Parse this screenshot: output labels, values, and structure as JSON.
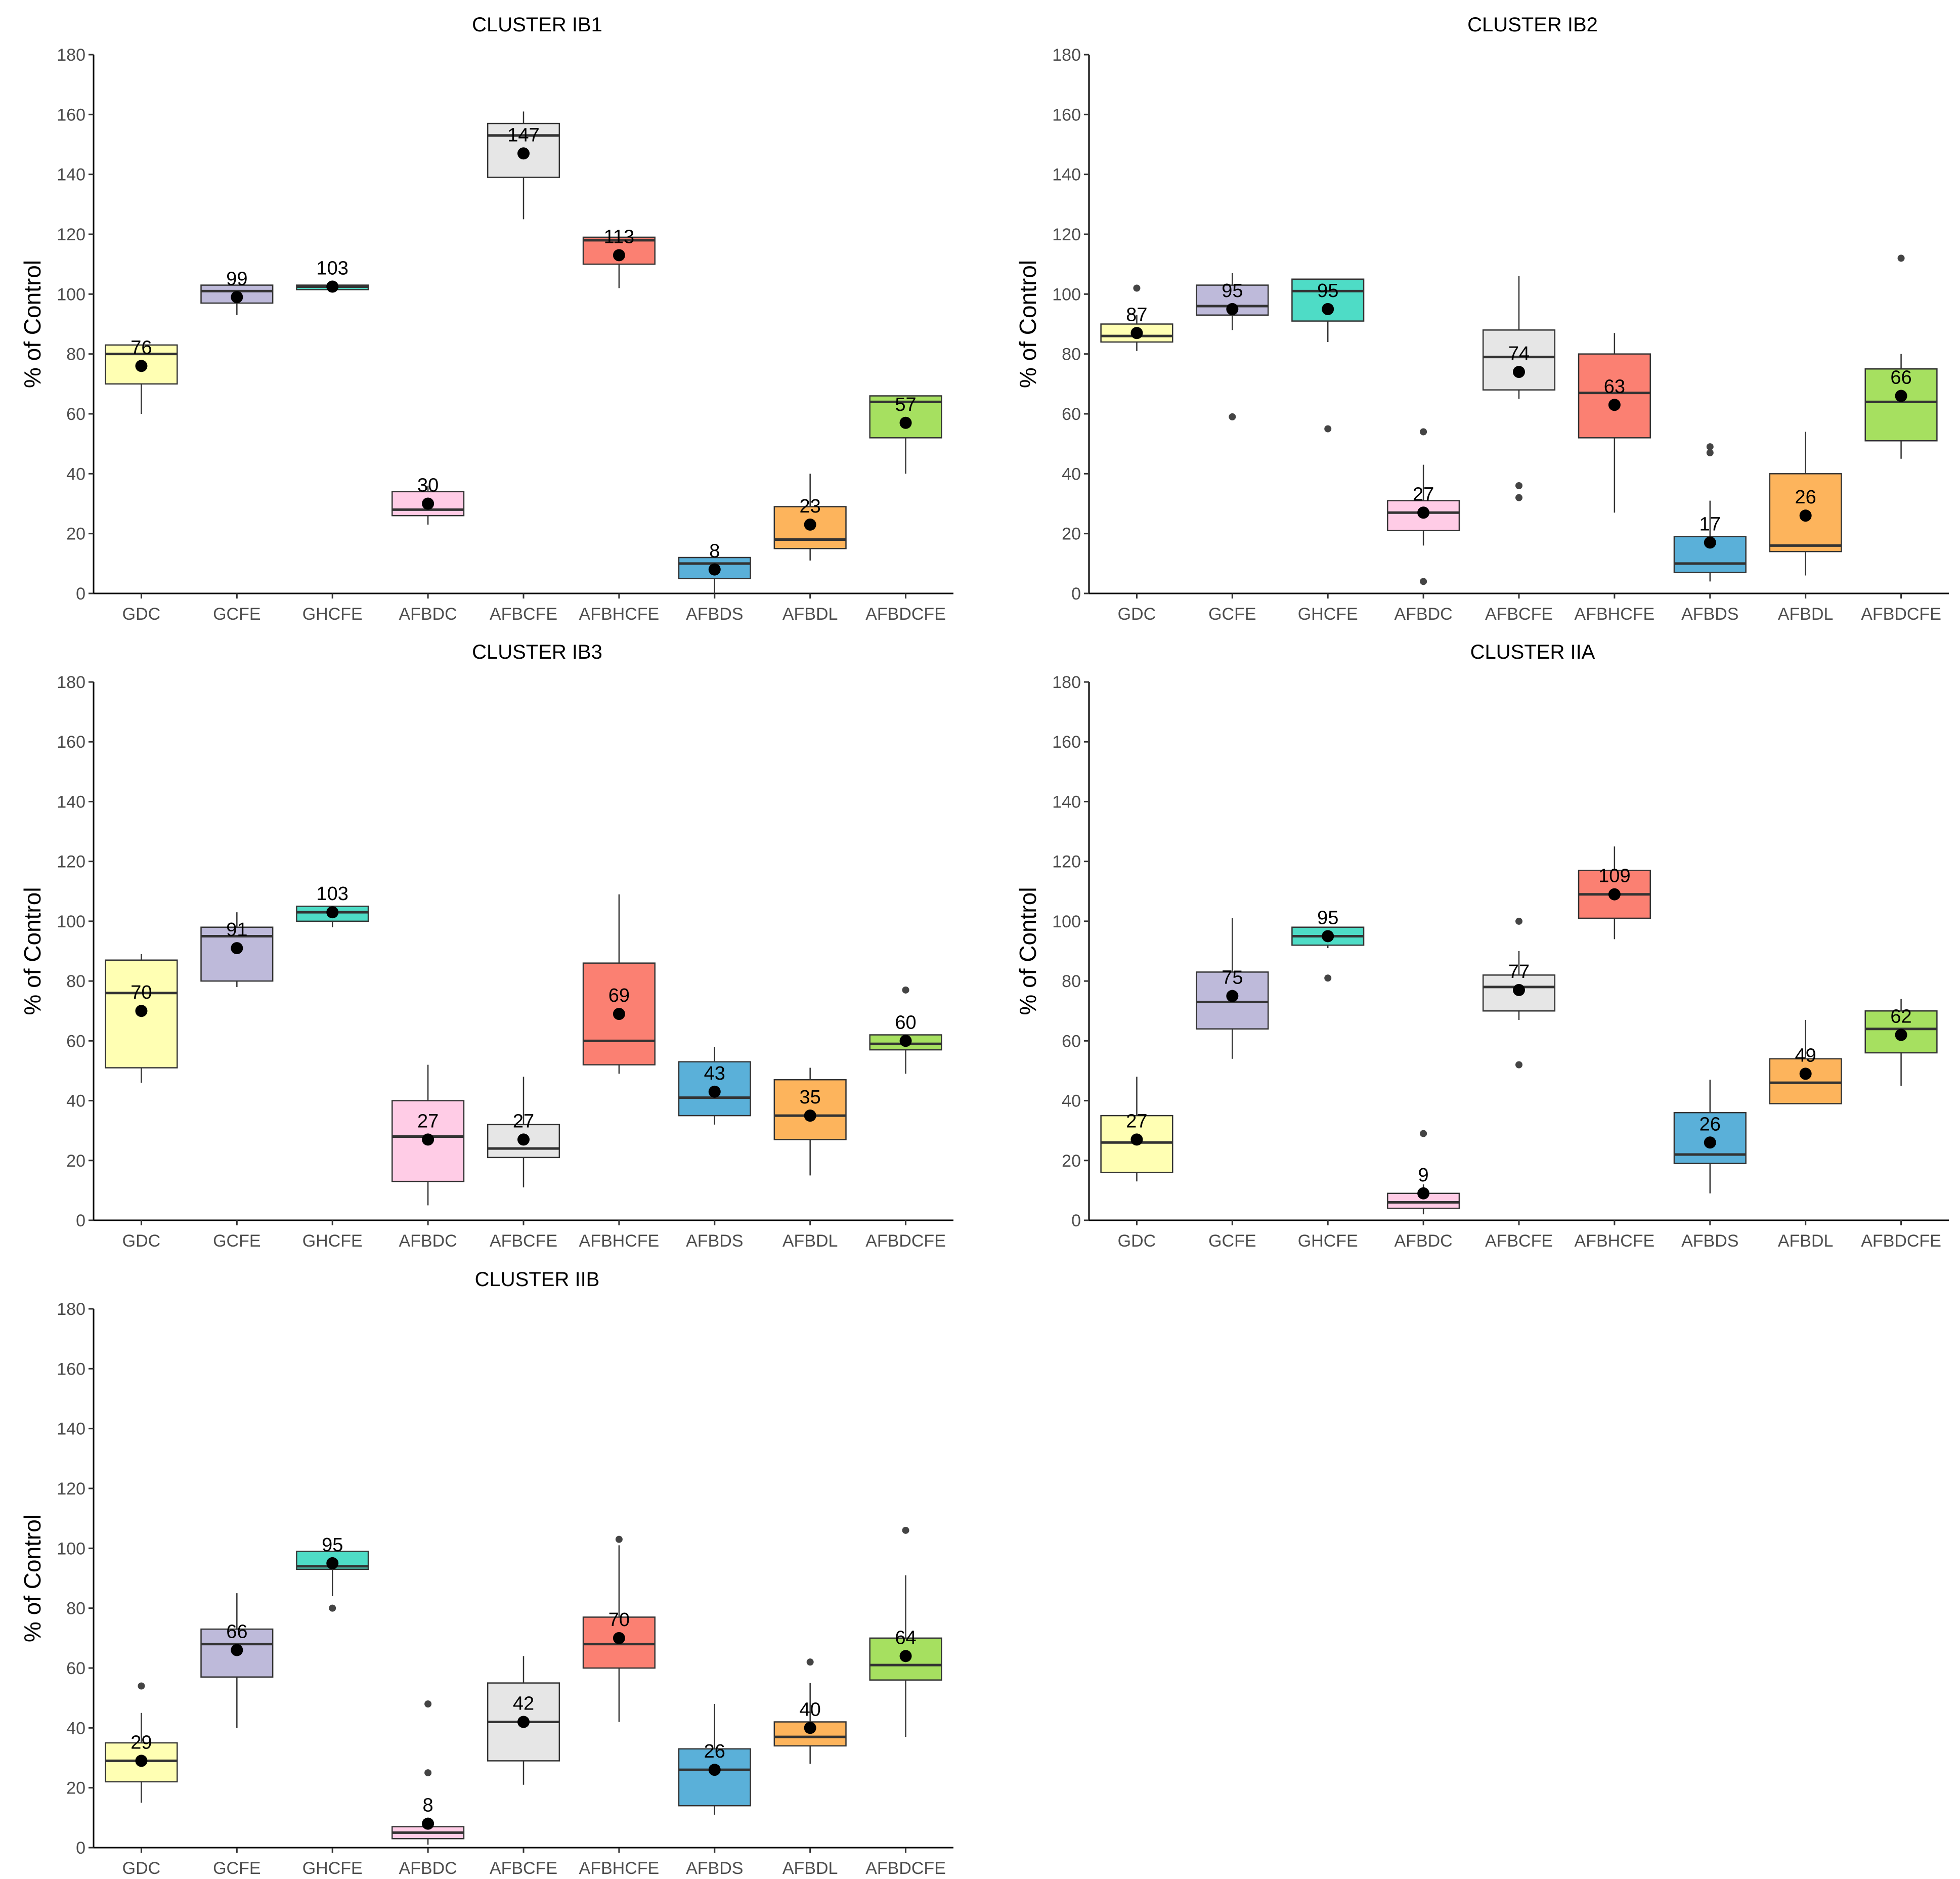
{
  "chart_data": [
    {
      "type": "box",
      "title": "CLUSTER IB1",
      "ylabel": "% of Control",
      "ylim": [
        0,
        180
      ],
      "yticks": [
        0,
        20,
        40,
        60,
        80,
        100,
        120,
        140,
        160,
        180
      ],
      "categories": [
        "GDC",
        "GCFE",
        "GHCFE",
        "AFBDC",
        "AFBCFE",
        "AFBHCFE",
        "AFBDS",
        "AFBDL",
        "AFBDCFE"
      ],
      "boxes": [
        {
          "category": "GDC",
          "color": "#FFFFB3",
          "q1": 70,
          "median": 80,
          "q3": 83,
          "wlo": 60,
          "whi": 83,
          "mean": 76,
          "mean_label": "76",
          "outliers": []
        },
        {
          "category": "GCFE",
          "color": "#BEBADA",
          "q1": 97,
          "median": 101,
          "q3": 103,
          "wlo": 93,
          "whi": 103,
          "mean": 99,
          "mean_label": "99",
          "outliers": []
        },
        {
          "category": "GHCFE",
          "color": "#4EDCC6",
          "q1": 101.5,
          "median": 102.5,
          "q3": 103,
          "wlo": 101.5,
          "whi": 103,
          "mean": 102.5,
          "mean_label": "103",
          "outliers": []
        },
        {
          "category": "AFBDC",
          "color": "#FFCCE6",
          "q1": 26,
          "median": 28,
          "q3": 34,
          "wlo": 23,
          "whi": 36,
          "mean": 30,
          "mean_label": "30",
          "outliers": []
        },
        {
          "category": "AFBCFE",
          "color": "#E6E6E6",
          "q1": 139,
          "median": 153,
          "q3": 157,
          "wlo": 125,
          "whi": 161,
          "mean": 147,
          "mean_label": "147",
          "outliers": []
        },
        {
          "category": "AFBHCFE",
          "color": "#FB8072",
          "q1": 110,
          "median": 118,
          "q3": 119,
          "wlo": 102,
          "whi": 119,
          "mean": 113,
          "mean_label": "113",
          "outliers": []
        },
        {
          "category": "AFBDS",
          "color": "#5AB0D9",
          "q1": 5,
          "median": 10,
          "q3": 12,
          "wlo": 0,
          "whi": 12,
          "mean": 8,
          "mean_label": "8",
          "outliers": []
        },
        {
          "category": "AFBDL",
          "color": "#FDB45C",
          "q1": 15,
          "median": 18,
          "q3": 29,
          "wlo": 11,
          "whi": 40,
          "mean": 23,
          "mean_label": "23",
          "outliers": []
        },
        {
          "category": "AFBDCFE",
          "color": "#A6E060",
          "q1": 52,
          "median": 64,
          "q3": 66,
          "wlo": 40,
          "whi": 66,
          "mean": 57,
          "mean_label": "57",
          "outliers": []
        }
      ]
    },
    {
      "type": "box",
      "title": "CLUSTER IB2",
      "ylabel": "% of Control",
      "ylim": [
        0,
        180
      ],
      "yticks": [
        0,
        20,
        40,
        60,
        80,
        100,
        120,
        140,
        160,
        180
      ],
      "categories": [
        "GDC",
        "GCFE",
        "GHCFE",
        "AFBDC",
        "AFBCFE",
        "AFBHCFE",
        "AFBDS",
        "AFBDL",
        "AFBDCFE"
      ],
      "boxes": [
        {
          "category": "GDC",
          "color": "#FFFFB3",
          "q1": 84,
          "median": 86,
          "q3": 90,
          "wlo": 81,
          "whi": 93,
          "mean": 87,
          "mean_label": "87",
          "outliers": [
            102
          ]
        },
        {
          "category": "GCFE",
          "color": "#BEBADA",
          "q1": 93,
          "median": 96,
          "q3": 103,
          "wlo": 88,
          "whi": 107,
          "mean": 95,
          "mean_label": "95",
          "outliers": [
            59
          ]
        },
        {
          "category": "GHCFE",
          "color": "#4EDCC6",
          "q1": 91,
          "median": 101,
          "q3": 105,
          "wlo": 84,
          "whi": 105,
          "mean": 95,
          "mean_label": "95",
          "outliers": [
            55
          ]
        },
        {
          "category": "AFBDC",
          "color": "#FFCCE6",
          "q1": 21,
          "median": 27,
          "q3": 31,
          "wlo": 16,
          "whi": 43,
          "mean": 27,
          "mean_label": "27",
          "outliers": [
            54,
            4
          ]
        },
        {
          "category": "AFBCFE",
          "color": "#E6E6E6",
          "q1": 68,
          "median": 79,
          "q3": 88,
          "wlo": 65,
          "whi": 106,
          "mean": 74,
          "mean_label": "74",
          "outliers": [
            36,
            32
          ]
        },
        {
          "category": "AFBHCFE",
          "color": "#FB8072",
          "q1": 52,
          "median": 67,
          "q3": 80,
          "wlo": 27,
          "whi": 87,
          "mean": 63,
          "mean_label": "63",
          "outliers": []
        },
        {
          "category": "AFBDS",
          "color": "#5AB0D9",
          "q1": 7,
          "median": 10,
          "q3": 19,
          "wlo": 4,
          "whi": 31,
          "mean": 17,
          "mean_label": "17",
          "outliers": [
            49,
            47
          ]
        },
        {
          "category": "AFBDL",
          "color": "#FDB45C",
          "q1": 14,
          "median": 16,
          "q3": 40,
          "wlo": 6,
          "whi": 54,
          "mean": 26,
          "mean_label": "26",
          "outliers": []
        },
        {
          "category": "AFBDCFE",
          "color": "#A6E060",
          "q1": 51,
          "median": 64,
          "q3": 75,
          "wlo": 45,
          "whi": 80,
          "mean": 66,
          "mean_label": "66",
          "outliers": [
            112
          ]
        }
      ]
    },
    {
      "type": "box",
      "title": "CLUSTER IB3",
      "ylabel": "% of Control",
      "ylim": [
        0,
        180
      ],
      "yticks": [
        0,
        20,
        40,
        60,
        80,
        100,
        120,
        140,
        160,
        180
      ],
      "categories": [
        "GDC",
        "GCFE",
        "GHCFE",
        "AFBDC",
        "AFBCFE",
        "AFBHCFE",
        "AFBDS",
        "AFBDL",
        "AFBDCFE"
      ],
      "boxes": [
        {
          "category": "GDC",
          "color": "#FFFFB3",
          "q1": 51,
          "median": 76,
          "q3": 87,
          "wlo": 46,
          "whi": 89,
          "mean": 70,
          "mean_label": "70",
          "outliers": []
        },
        {
          "category": "GCFE",
          "color": "#BEBADA",
          "q1": 80,
          "median": 95,
          "q3": 98,
          "wlo": 78,
          "whi": 103,
          "mean": 91,
          "mean_label": "91",
          "outliers": []
        },
        {
          "category": "GHCFE",
          "color": "#4EDCC6",
          "q1": 100,
          "median": 103,
          "q3": 105,
          "wlo": 98,
          "whi": 105,
          "mean": 103,
          "mean_label": "103",
          "outliers": []
        },
        {
          "category": "AFBDC",
          "color": "#FFCCE6",
          "q1": 13,
          "median": 28,
          "q3": 40,
          "wlo": 5,
          "whi": 52,
          "mean": 27,
          "mean_label": "27",
          "outliers": []
        },
        {
          "category": "AFBCFE",
          "color": "#E6E6E6",
          "q1": 21,
          "median": 24,
          "q3": 32,
          "wlo": 11,
          "whi": 48,
          "mean": 27,
          "mean_label": "27",
          "outliers": []
        },
        {
          "category": "AFBHCFE",
          "color": "#FB8072",
          "q1": 52,
          "median": 60,
          "q3": 86,
          "wlo": 49,
          "whi": 109,
          "mean": 69,
          "mean_label": "69",
          "outliers": []
        },
        {
          "category": "AFBDS",
          "color": "#5AB0D9",
          "q1": 35,
          "median": 41,
          "q3": 53,
          "wlo": 32,
          "whi": 58,
          "mean": 43,
          "mean_label": "43",
          "outliers": []
        },
        {
          "category": "AFBDL",
          "color": "#FDB45C",
          "q1": 27,
          "median": 35,
          "q3": 47,
          "wlo": 15,
          "whi": 51,
          "mean": 35,
          "mean_label": "35",
          "outliers": []
        },
        {
          "category": "AFBDCFE",
          "color": "#A6E060",
          "q1": 57,
          "median": 59,
          "q3": 62,
          "wlo": 49,
          "whi": 62,
          "mean": 60,
          "mean_label": "60",
          "outliers": [
            77
          ]
        }
      ]
    },
    {
      "type": "box",
      "title": "CLUSTER IIA",
      "ylabel": "% of Control",
      "ylim": [
        0,
        180
      ],
      "yticks": [
        0,
        20,
        40,
        60,
        80,
        100,
        120,
        140,
        160,
        180
      ],
      "categories": [
        "GDC",
        "GCFE",
        "GHCFE",
        "AFBDC",
        "AFBCFE",
        "AFBHCFE",
        "AFBDS",
        "AFBDL",
        "AFBDCFE"
      ],
      "boxes": [
        {
          "category": "GDC",
          "color": "#FFFFB3",
          "q1": 16,
          "median": 26,
          "q3": 35,
          "wlo": 13,
          "whi": 48,
          "mean": 27,
          "mean_label": "27",
          "outliers": []
        },
        {
          "category": "GCFE",
          "color": "#BEBADA",
          "q1": 64,
          "median": 73,
          "q3": 83,
          "wlo": 54,
          "whi": 101,
          "mean": 75,
          "mean_label": "75",
          "outliers": []
        },
        {
          "category": "GHCFE",
          "color": "#4EDCC6",
          "q1": 92,
          "median": 95,
          "q3": 98,
          "wlo": 91,
          "whi": 98,
          "mean": 95,
          "mean_label": "95",
          "outliers": [
            81
          ]
        },
        {
          "category": "AFBDC",
          "color": "#FFCCE6",
          "q1": 4,
          "median": 6,
          "q3": 9,
          "wlo": 2,
          "whi": 12,
          "mean": 9,
          "mean_label": "9",
          "outliers": [
            29
          ]
        },
        {
          "category": "AFBCFE",
          "color": "#E6E6E6",
          "q1": 70,
          "median": 78,
          "q3": 82,
          "wlo": 67,
          "whi": 90,
          "mean": 77,
          "mean_label": "77",
          "outliers": [
            100,
            52
          ]
        },
        {
          "category": "AFBHCFE",
          "color": "#FB8072",
          "q1": 101,
          "median": 109,
          "q3": 117,
          "wlo": 94,
          "whi": 125,
          "mean": 109,
          "mean_label": "109",
          "outliers": []
        },
        {
          "category": "AFBDS",
          "color": "#5AB0D9",
          "q1": 19,
          "median": 22,
          "q3": 36,
          "wlo": 9,
          "whi": 47,
          "mean": 26,
          "mean_label": "26",
          "outliers": []
        },
        {
          "category": "AFBDL",
          "color": "#FDB45C",
          "q1": 39,
          "median": 46,
          "q3": 54,
          "wlo": 39,
          "whi": 67,
          "mean": 49,
          "mean_label": "49",
          "outliers": []
        },
        {
          "category": "AFBDCFE",
          "color": "#A6E060",
          "q1": 56,
          "median": 64,
          "q3": 70,
          "wlo": 45,
          "whi": 74,
          "mean": 62,
          "mean_label": "62",
          "outliers": []
        }
      ]
    },
    {
      "type": "box",
      "title": "CLUSTER IIB",
      "ylabel": "% of Control",
      "ylim": [
        0,
        180
      ],
      "yticks": [
        0,
        20,
        40,
        60,
        80,
        100,
        120,
        140,
        160,
        180
      ],
      "categories": [
        "GDC",
        "GCFE",
        "GHCFE",
        "AFBDC",
        "AFBCFE",
        "AFBHCFE",
        "AFBDS",
        "AFBDL",
        "AFBDCFE"
      ],
      "boxes": [
        {
          "category": "GDC",
          "color": "#FFFFB3",
          "q1": 22,
          "median": 29,
          "q3": 35,
          "wlo": 15,
          "whi": 45,
          "mean": 29,
          "mean_label": "29",
          "outliers": [
            54
          ]
        },
        {
          "category": "GCFE",
          "color": "#BEBADA",
          "q1": 57,
          "median": 68,
          "q3": 73,
          "wlo": 40,
          "whi": 85,
          "mean": 66,
          "mean_label": "66",
          "outliers": []
        },
        {
          "category": "GHCFE",
          "color": "#4EDCC6",
          "q1": 93,
          "median": 94,
          "q3": 99,
          "wlo": 84,
          "whi": 99,
          "mean": 95,
          "mean_label": "95",
          "outliers": [
            80
          ]
        },
        {
          "category": "AFBDC",
          "color": "#FFCCE6",
          "q1": 3,
          "median": 5,
          "q3": 7,
          "wlo": 1,
          "whi": 10,
          "mean": 8,
          "mean_label": "8",
          "outliers": [
            48,
            25
          ]
        },
        {
          "category": "AFBCFE",
          "color": "#E6E6E6",
          "q1": 29,
          "median": 42,
          "q3": 55,
          "wlo": 21,
          "whi": 64,
          "mean": 42,
          "mean_label": "42",
          "outliers": []
        },
        {
          "category": "AFBHCFE",
          "color": "#FB8072",
          "q1": 60,
          "median": 68,
          "q3": 77,
          "wlo": 42,
          "whi": 101,
          "mean": 70,
          "mean_label": "70",
          "outliers": [
            103
          ]
        },
        {
          "category": "AFBDS",
          "color": "#5AB0D9",
          "q1": 14,
          "median": 26,
          "q3": 33,
          "wlo": 11,
          "whi": 48,
          "mean": 26,
          "mean_label": "26",
          "outliers": []
        },
        {
          "category": "AFBDL",
          "color": "#FDB45C",
          "q1": 34,
          "median": 37,
          "q3": 42,
          "wlo": 28,
          "whi": 55,
          "mean": 40,
          "mean_label": "40",
          "outliers": [
            62
          ]
        },
        {
          "category": "AFBDCFE",
          "color": "#A6E060",
          "q1": 56,
          "median": 61,
          "q3": 70,
          "wlo": 37,
          "whi": 91,
          "mean": 64,
          "mean_label": "64",
          "outliers": [
            106
          ]
        }
      ]
    }
  ]
}
